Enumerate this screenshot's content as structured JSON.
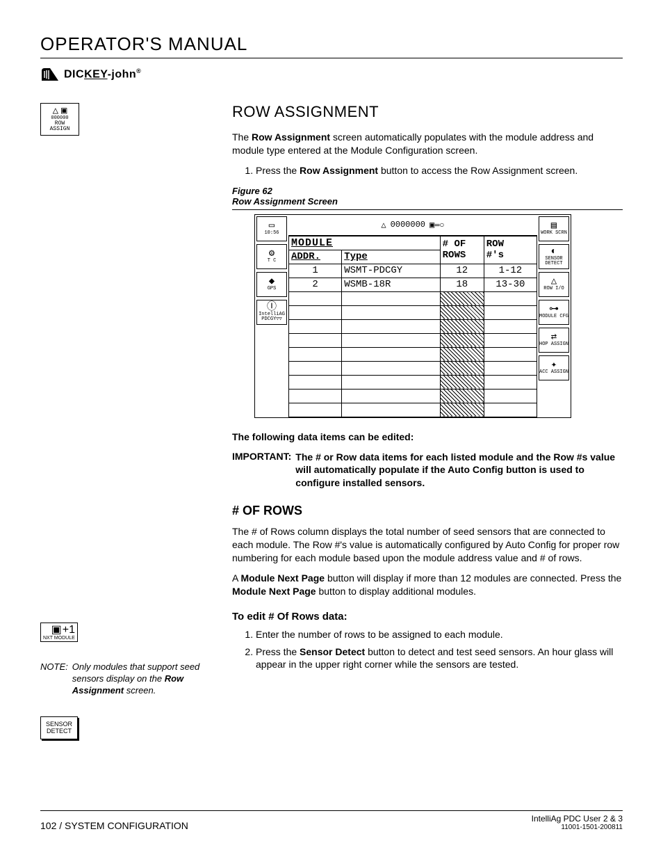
{
  "page_title": "OPERATOR'S MANUAL",
  "logo": {
    "brand_pre": "DIC",
    "brand_key": "KEY",
    "brand_post": "-john",
    "reg": "®"
  },
  "left_icons": {
    "row_assign": {
      "label": "ROW ASSIGN",
      "counter": "000000"
    },
    "nxt_module": {
      "label": "NXT MODULE",
      "plus": "+1"
    },
    "sensor_detect": {
      "line1": "SENSOR",
      "line2": "DETECT"
    }
  },
  "section_heading": "ROW ASSIGNMENT",
  "intro_para": {
    "pre": "The ",
    "bold1": "Row Assignment",
    "post": " screen automatically populates with the module address and module type entered at the Module Configuration screen."
  },
  "step1": {
    "pre": "Press the ",
    "bold": "Row Assignment",
    "post": " button to access the Row Assignment screen."
  },
  "figure": {
    "num": "Figure 62",
    "caption": "Row Assignment Screen"
  },
  "screen": {
    "clock": "10:56",
    "topbar": "0000000",
    "left_btns": [
      {
        "glyph": "▭",
        "label": "10:56"
      },
      {
        "glyph": "⚙",
        "label": "T C"
      },
      {
        "glyph": "◆",
        "label": "GPS"
      },
      {
        "glyph": "Ⓘ",
        "label": "IntelliAG\nPDCGY▽▽"
      }
    ],
    "right_btns": [
      {
        "glyph": "▤",
        "label": "WORK SCRN"
      },
      {
        "glyph": "◐",
        "label": "SENSOR\nDETECT"
      },
      {
        "glyph": "△",
        "label": "ROW I/O"
      },
      {
        "glyph": "⊶",
        "label": "MODULE CFG"
      },
      {
        "glyph": "⇄",
        "label": "HOP ASSIGN"
      },
      {
        "glyph": "✦",
        "label": "ACC ASSIGN"
      }
    ],
    "headers": {
      "module": "MODULE",
      "addr": "ADDR.",
      "type": "Type",
      "numrows": "# OF\nROWS",
      "rownums": "ROW\n#'s"
    },
    "rows": [
      {
        "addr": "1",
        "type": "WSMT-PDCGY",
        "num": "12",
        "rownums": "1-12"
      },
      {
        "addr": "2",
        "type": "WSMB-18R",
        "num": "18",
        "rownums": "13-30"
      }
    ],
    "empty_row_count": 9
  },
  "editable_intro": "The following data items can be edited:",
  "important": {
    "label": "IMPORTANT:",
    "text": "The # or Row data items for each listed module and the Row #s value will automatically populate if the Auto Config button is used to configure installed sensors."
  },
  "subheading": "# OF ROWS",
  "numrows_para": "The # of Rows column displays the total number of seed sensors that are connected to each module. The Row #'s value is automatically configured by Auto Config for proper row numbering for each module based upon the module address value and # of rows.",
  "modnext_para": {
    "p1": "A ",
    "b1": "Module Next Page",
    "p2": " button will display if more than 12 modules are connected. Press the ",
    "b2": "Module Next Page",
    "p3": " button to display additional modules."
  },
  "edit_heading": "To edit # Of Rows data:",
  "edit_steps": {
    "s1": "Enter the number of rows to be assigned to each module.",
    "s2_pre": "Press the ",
    "s2_bold": "Sensor Detect",
    "s2_post": " button to detect and test seed sensors. An hour glass will appear in the upper right corner while the sensors are tested."
  },
  "note": {
    "label": "NOTE:",
    "pre": "Only modules that support seed sensors display on the ",
    "bold": "Row Assignment",
    "post": " screen."
  },
  "footer": {
    "left": "102 / SYSTEM CONFIGURATION",
    "right1": "IntelliAg PDC User 2 & 3",
    "right2": "11001-1501-200811"
  }
}
